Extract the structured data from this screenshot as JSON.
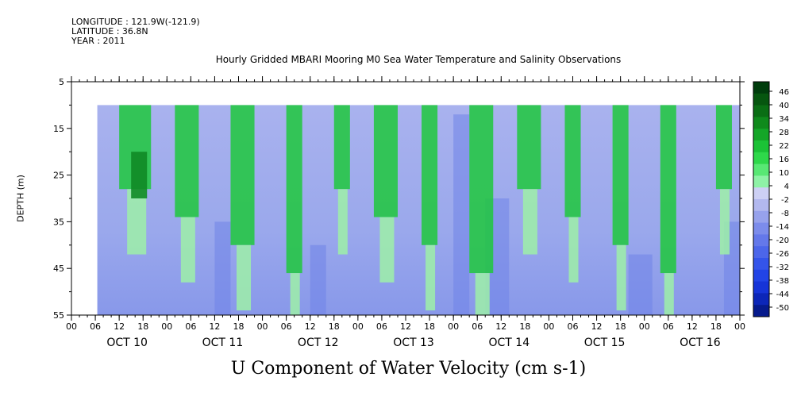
{
  "header": {
    "longitude": "LONGITUDE : 121.9W(-121.9)",
    "latitude": "LATITUDE : 36.8N",
    "year": "YEAR : 2011"
  },
  "chart_data": {
    "type": "heatmap",
    "title": "Hourly Gridded MBARI Mooring M0 Sea Water Temperature and Salinity Observations",
    "ylabel": "DEPTH (m)",
    "xlabel": "U Component of Water Velocity (cm s-1)",
    "y_ticks": [
      5,
      15,
      25,
      35,
      45,
      55
    ],
    "ylim": [
      5,
      55
    ],
    "y_reversed": true,
    "data_depth_range": [
      10,
      55
    ],
    "hour_ticks": [
      "00",
      "06",
      "12",
      "18",
      "00",
      "06",
      "12",
      "18",
      "00",
      "06",
      "12",
      "18",
      "00",
      "06",
      "12",
      "18",
      "00",
      "06",
      "12",
      "18",
      "00",
      "06",
      "12",
      "18",
      "00",
      "06",
      "12",
      "18",
      "00"
    ],
    "day_labels": [
      "OCT 10",
      "OCT 11",
      "OCT 12",
      "OCT 13",
      "OCT 14",
      "OCT 15",
      "OCT 16"
    ],
    "xlim_hours": [
      0,
      168
    ],
    "data_start_hour": 6.5,
    "colorbar": {
      "levels": [
        -50,
        46
      ],
      "tick_labels": [
        "46",
        "40",
        "34",
        "28",
        "22",
        "16",
        "10",
        "4",
        "-2",
        "-8",
        "-14",
        "-20",
        "-26",
        "-32",
        "-38",
        "-44",
        "-50"
      ],
      "colors": {
        "strong_positive": "#0a4a0a",
        "positive": "#1fc83c",
        "weak_positive": "#9ef0a8",
        "weak_negative": "#b4b8ee",
        "negative": "#6f84e8",
        "strong_negative": "#0a1a8c"
      }
    },
    "description_bands": [
      {
        "day": "OCT 10",
        "hours": [
          12,
          20
        ],
        "sign": "positive"
      },
      {
        "day": "OCT 11",
        "hours": [
          2,
          8
        ],
        "sign": "positive"
      },
      {
        "day": "OCT 11",
        "hours": [
          16,
          22
        ],
        "sign": "positive"
      },
      {
        "day": "OCT 12",
        "hours": [
          6,
          10
        ],
        "sign": "positive"
      },
      {
        "day": "OCT 12",
        "hours": [
          18,
          22
        ],
        "sign": "positive"
      },
      {
        "day": "OCT 13",
        "hours": [
          4,
          10
        ],
        "sign": "positive"
      },
      {
        "day": "OCT 13",
        "hours": [
          16,
          20
        ],
        "sign": "positive"
      },
      {
        "day": "OCT 14",
        "hours": [
          4,
          10
        ],
        "sign": "positive"
      },
      {
        "day": "OCT 14",
        "hours": [
          16,
          22
        ],
        "sign": "positive"
      },
      {
        "day": "OCT 15",
        "hours": [
          4,
          8
        ],
        "sign": "positive"
      },
      {
        "day": "OCT 15",
        "hours": [
          16,
          20
        ],
        "sign": "positive"
      },
      {
        "day": "OCT 16",
        "hours": [
          4,
          8
        ],
        "sign": "positive"
      },
      {
        "day": "OCT 16",
        "hours": [
          18,
          22
        ],
        "sign": "positive"
      }
    ]
  }
}
